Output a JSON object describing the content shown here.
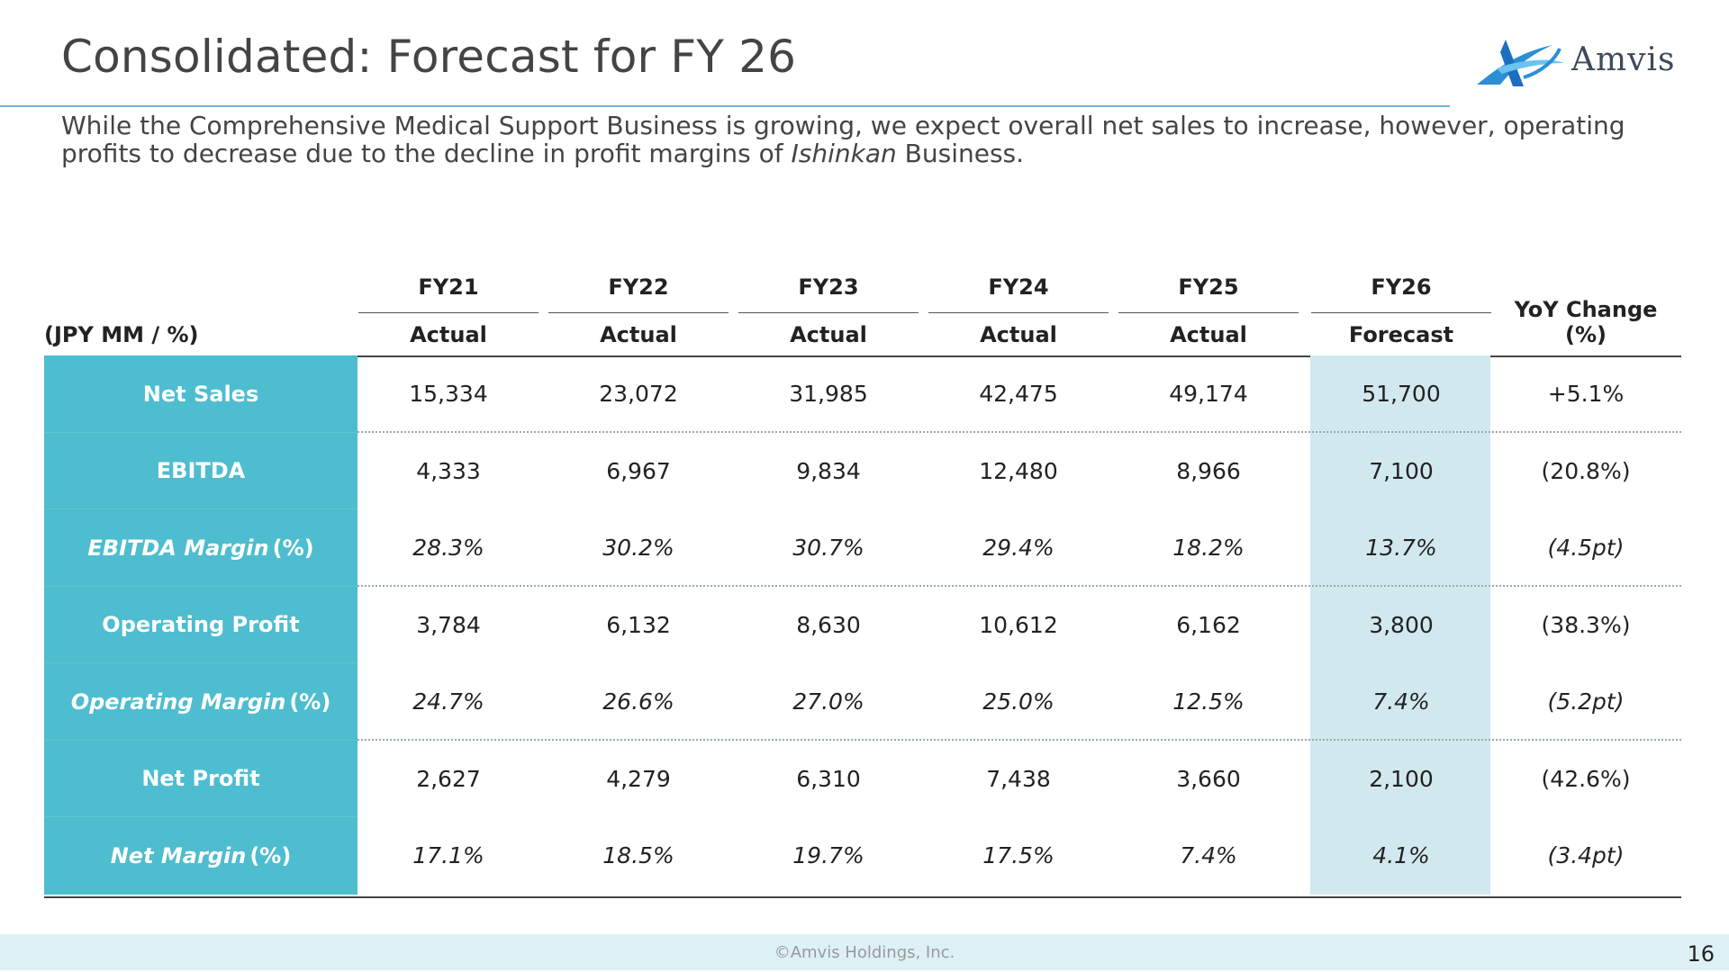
{
  "title": "Consolidated: Forecast for FY 26",
  "logo_text": "Amvis",
  "subtitle": {
    "part1": "While the Comprehensive Medical Support Business is growing, we expect overall net sales to increase, however, operating profits to decrease due to the decline in profit margins of ",
    "emph": "Ishinkan",
    "part2": " Business."
  },
  "table": {
    "unit_label": "(JPY  MM / %)",
    "columns": [
      {
        "year": "FY21",
        "type": "Actual"
      },
      {
        "year": "FY22",
        "type": "Actual"
      },
      {
        "year": "FY23",
        "type": "Actual"
      },
      {
        "year": "FY24",
        "type": "Actual"
      },
      {
        "year": "FY25",
        "type": "Actual"
      },
      {
        "year": "FY26",
        "type": "Forecast"
      }
    ],
    "yoy_header_line1": "YoY Change",
    "yoy_header_line2": "(%)",
    "rows": [
      {
        "label": "Net Sales",
        "suffix": "",
        "italic": false,
        "values": [
          "15,334",
          "23,072",
          "31,985",
          "42,475",
          "49,174",
          "51,700"
        ],
        "yoy": "+5.1%"
      },
      {
        "label": "EBITDA",
        "suffix": "",
        "italic": false,
        "values": [
          "4,333",
          "6,967",
          "9,834",
          "12,480",
          "8,966",
          "7,100"
        ],
        "yoy": "(20.8%)"
      },
      {
        "label": "EBITDA Margin",
        "suffix": "(%)",
        "italic": true,
        "values": [
          "28.3%",
          "30.2%",
          "30.7%",
          "29.4%",
          "18.2%",
          "13.7%"
        ],
        "yoy": "(4.5pt)"
      },
      {
        "label": "Operating Profit",
        "suffix": "",
        "italic": false,
        "values": [
          "3,784",
          "6,132",
          "8,630",
          "10,612",
          "6,162",
          "3,800"
        ],
        "yoy": "(38.3%)"
      },
      {
        "label": "Operating Margin",
        "suffix": "(%)",
        "italic": true,
        "values": [
          "24.7%",
          "26.6%",
          "27.0%",
          "25.0%",
          "12.5%",
          "7.4%"
        ],
        "yoy": "(5.2pt)"
      },
      {
        "label": "Net Profit",
        "suffix": "",
        "italic": false,
        "values": [
          "2,627",
          "4,279",
          "6,310",
          "7,438",
          "3,660",
          "2,100"
        ],
        "yoy": "(42.6%)"
      },
      {
        "label": "Net Margin",
        "suffix": "(%)",
        "italic": true,
        "values": [
          "17.1%",
          "18.5%",
          "19.7%",
          "17.5%",
          "7.4%",
          "4.1%"
        ],
        "yoy": "(3.4pt)"
      }
    ]
  },
  "footer": {
    "copyright": "©Amvis Holdings, Inc.",
    "page_number": "16"
  },
  "colors": {
    "label_bg": "#4dbdcf",
    "forecast_bg": "#d2e8ef",
    "title_rule": "#6fb3d6",
    "footer_bg": "#ddf1f5"
  }
}
